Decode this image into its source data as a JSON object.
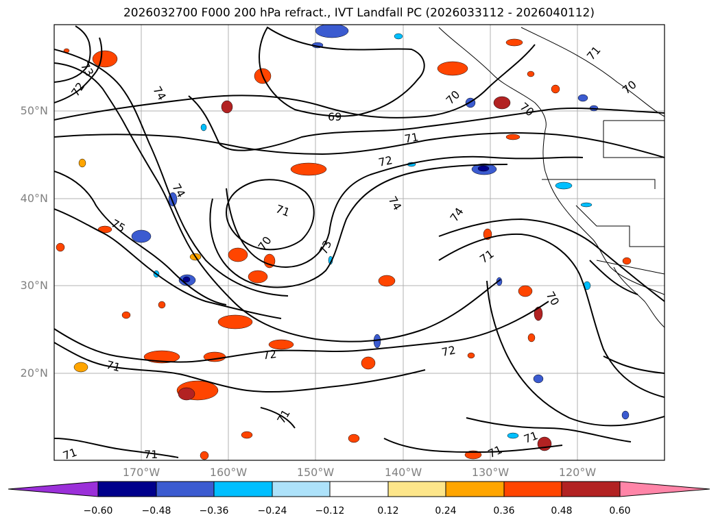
{
  "title": "2026032700 F000 200 hPa refract., IVT Landfall PC (2026033112 - 2026040112)",
  "lat_labels": [
    "50°N",
    "40°N",
    "30°N",
    "20°N"
  ],
  "lon_labels": [
    "170°W",
    "160°W",
    "150°W",
    "140°W",
    "130°W",
    "120°W"
  ],
  "contour_labels": [
    "73",
    "72",
    "74",
    "74",
    "69",
    "71",
    "72",
    "71",
    "70",
    "74",
    "74",
    "73",
    "75",
    "71",
    "70",
    "72",
    "72",
    "71",
    "71",
    "71",
    "70",
    "70",
    "71",
    "71",
    "70",
    "71",
    "71"
  ],
  "colorbar": {
    "tick_labels": [
      "−0.60",
      "−0.48",
      "−0.36",
      "−0.24",
      "−0.12",
      "0.12",
      "0.24",
      "0.36",
      "0.48",
      "0.60"
    ],
    "colors": [
      "#9b30d9",
      "#00008b",
      "#3b5bd0",
      "#00bfff",
      "#ade2fa",
      "#ffffff",
      "#fde68a",
      "#ffa500",
      "#ff4500",
      "#b22222",
      "#ff85a8"
    ]
  }
}
